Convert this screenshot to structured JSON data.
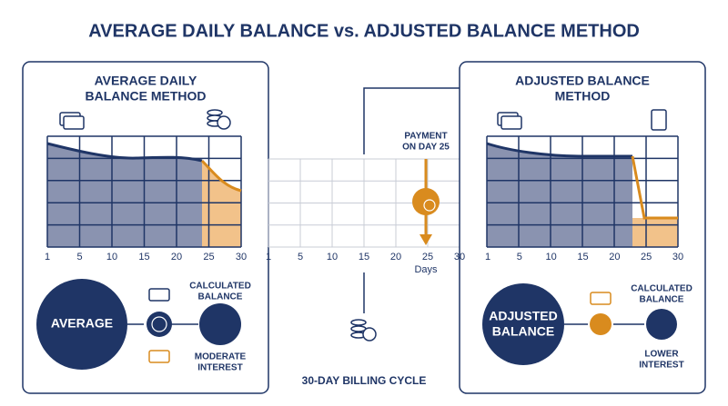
{
  "title": "AVERAGE DAILY BALANCE vs. ADJUSTED BALANCE METHOD",
  "left_panel": {
    "title": [
      "AVERAGE DAILY",
      "BALANCE METHOD"
    ],
    "x_ticks": [
      "1",
      "5",
      "10",
      "15",
      "20",
      "25",
      "30"
    ],
    "circle_label": "AVERAGE",
    "result_top": [
      "CALCULATED",
      "BALANCE"
    ],
    "result_bottom": [
      "MODERATE",
      "INTEREST"
    ]
  },
  "center": {
    "payment_label": [
      "PAYMENT",
      "ON DAY 25"
    ],
    "x_ticks": [
      "1",
      "5",
      "10",
      "15",
      "20",
      "25",
      "30"
    ],
    "x_axis_label": "Days",
    "footer": "30-DAY BILLING CYCLE"
  },
  "right_panel": {
    "title": [
      "ADJUSTED BALANCE",
      "METHOD"
    ],
    "x_ticks": [
      "1",
      "5",
      "10",
      "15",
      "20",
      "25",
      "30"
    ],
    "circle_label": [
      "ADJUSTED",
      "BALANCE"
    ],
    "result_top": [
      "CALCULATED",
      "BALANCE"
    ],
    "result_bottom": [
      "LOWER",
      "INTEREST"
    ]
  }
}
